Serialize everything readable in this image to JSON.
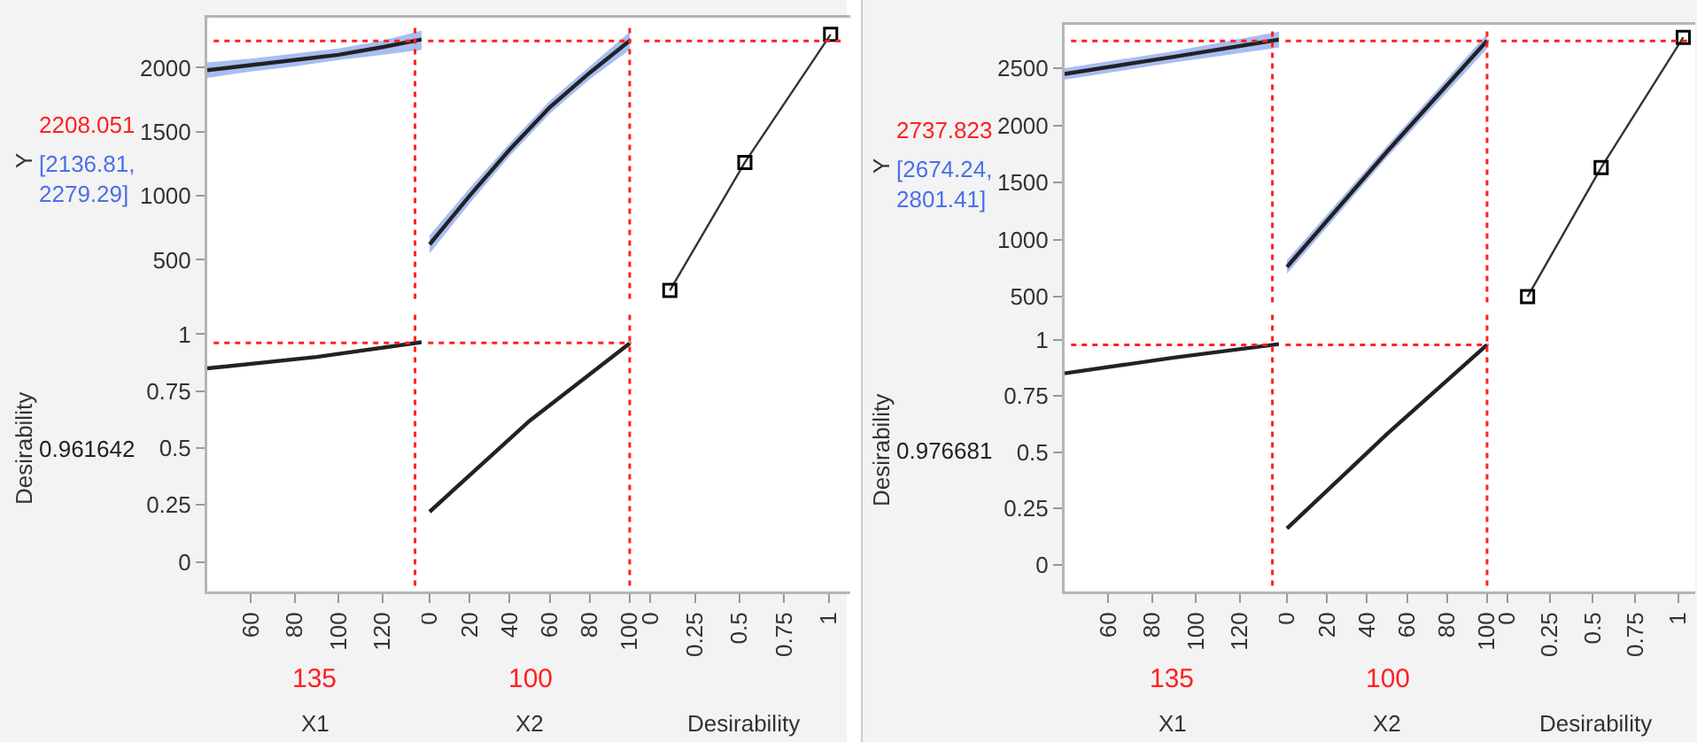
{
  "chart_data": [
    {
      "type": "line",
      "ylabel": "Y",
      "annotations": [
        "[2136.81, 2279.29]"
      ],
      "xlim": [
        40,
        138
      ],
      "ylim": [
        150,
        2390
      ],
      "yticks": [
        500,
        1000,
        1500,
        2000
      ],
      "tick_labels": "y",
      "series": [
        {
          "color": "#222222",
          "x": [
            40,
            60,
            80,
            100,
            120,
            138
          ],
          "values": [
            1980,
            2020,
            2060,
            2100,
            2160,
            2220
          ],
          "lower": [
            1920,
            1970,
            2010,
            2060,
            2100,
            2140
          ],
          "upper": [
            2040,
            2070,
            2110,
            2150,
            2210,
            2290
          ]
        }
      ],
      "ref_lines": [
        {
          "axis": "y",
          "value": 2208.051,
          "label": "2208.051",
          "color": "#ff2020",
          "line_style": "dotted"
        },
        {
          "axis": "x",
          "value": 135,
          "color": "#ff2020",
          "line_style": "dotted"
        }
      ]
    },
    {
      "type": "line",
      "xlim": [
        -4,
        104
      ],
      "ylim": [
        150,
        2390
      ],
      "tick_labels": false,
      "series": [
        {
          "color": "#222222",
          "x": [
            0,
            20,
            40,
            60,
            80,
            100
          ],
          "values": [
            620,
            1000,
            1360,
            1690,
            1960,
            2210
          ],
          "lower": [
            550,
            940,
            1310,
            1640,
            1910,
            2140
          ],
          "upper": [
            690,
            1060,
            1410,
            1740,
            2010,
            2280
          ]
        }
      ],
      "ref_lines": [
        {
          "axis": "y",
          "value": 2208.051,
          "color": "#ff2020",
          "line_style": "dotted"
        },
        {
          "axis": "x",
          "value": 100,
          "color": "#ff2020",
          "line_style": "dotted"
        }
      ]
    },
    {
      "type": "line",
      "marker": "square",
      "xlim": [
        -0.07,
        1.12
      ],
      "ylim": [
        150,
        2390
      ],
      "tick_labels": false,
      "series": [
        {
          "color": "#333333",
          "x": [
            0.11,
            0.53,
            1.01
          ],
          "values": [
            260,
            1260,
            2260
          ]
        }
      ],
      "ref_lines": [
        {
          "axis": "y",
          "value": 2208.051,
          "color": "#ff2020",
          "line_style": "dotted"
        }
      ]
    },
    {
      "type": "line",
      "ylabel": "Desirability",
      "xlabel": "X1",
      "annotations": [
        "0.961642"
      ],
      "xlim": [
        40,
        138
      ],
      "xticks": [
        60,
        80,
        100,
        120
      ],
      "ylim": [
        -0.13,
        1.13
      ],
      "yticks": [
        0,
        0.25,
        0.5,
        0.75,
        1
      ],
      "series": [
        {
          "color": "#222222",
          "x": [
            40,
            90,
            138
          ],
          "values": [
            0.85,
            0.9,
            0.965
          ]
        }
      ],
      "ref_lines": [
        {
          "axis": "y",
          "value": 0.961642,
          "color": "#ff2020",
          "line_style": "dotted"
        },
        {
          "axis": "x",
          "value": 135,
          "label": "135",
          "color": "#ff2020",
          "line_style": "dotted"
        }
      ]
    },
    {
      "type": "line",
      "xlabel": "X2",
      "xlim": [
        -4,
        104
      ],
      "xticks": [
        0,
        20,
        40,
        60,
        80,
        100
      ],
      "ylim": [
        -0.13,
        1.13
      ],
      "tick_labels": "x",
      "series": [
        {
          "color": "#222222",
          "x": [
            0,
            50,
            100
          ],
          "values": [
            0.22,
            0.62,
            0.96
          ]
        }
      ],
      "ref_lines": [
        {
          "axis": "y",
          "value": 0.961642,
          "color": "#ff2020",
          "line_style": "dotted"
        },
        {
          "axis": "x",
          "value": 100,
          "label": "100",
          "color": "#ff2020",
          "line_style": "dotted"
        }
      ]
    },
    {
      "type": "line",
      "xlabel": "Desirability",
      "xlim": [
        -0.07,
        1.12
      ],
      "xticks": [
        0,
        0.25,
        0.5,
        0.75,
        1
      ],
      "ylim": [
        -0.13,
        1.13
      ],
      "tick_labels": "x"
    },
    {
      "type": "line",
      "ylabel": "Y",
      "annotations": [
        "[2674.24, 2801.41]"
      ],
      "xlim": [
        40,
        138
      ],
      "ylim": [
        400,
        2880
      ],
      "yticks": [
        500,
        1000,
        1500,
        2000,
        2500
      ],
      "tick_labels": "y",
      "series": [
        {
          "color": "#222222",
          "x": [
            40,
            90,
            138
          ],
          "values": [
            2450,
            2600,
            2750
          ],
          "lower": [
            2400,
            2550,
            2680
          ],
          "upper": [
            2500,
            2650,
            2820
          ]
        }
      ],
      "ref_lines": [
        {
          "axis": "y",
          "value": 2737.823,
          "label": "2737.823",
          "color": "#ff2020",
          "line_style": "dotted"
        },
        {
          "axis": "x",
          "value": 135,
          "color": "#ff2020",
          "line_style": "dotted"
        }
      ]
    },
    {
      "type": "line",
      "xlim": [
        -4,
        104
      ],
      "ylim": [
        400,
        2880
      ],
      "tick_labels": false,
      "series": [
        {
          "color": "#222222",
          "x": [
            0,
            50,
            100
          ],
          "values": [
            760,
            1770,
            2740
          ],
          "lower": [
            700,
            1720,
            2670
          ],
          "upper": [
            820,
            1820,
            2800
          ]
        }
      ],
      "ref_lines": [
        {
          "axis": "y",
          "value": 2737.823,
          "color": "#ff2020",
          "line_style": "dotted"
        },
        {
          "axis": "x",
          "value": 100,
          "color": "#ff2020",
          "line_style": "dotted"
        }
      ]
    },
    {
      "type": "line",
      "marker": "square",
      "xlim": [
        -0.07,
        1.1
      ],
      "ylim": [
        400,
        2880
      ],
      "tick_labels": false,
      "series": [
        {
          "color": "#333333",
          "x": [
            0.12,
            0.55,
            1.03
          ],
          "values": [
            500,
            1630,
            2770
          ]
        }
      ],
      "ref_lines": [
        {
          "axis": "y",
          "value": 2737.823,
          "color": "#ff2020",
          "line_style": "dotted"
        }
      ]
    },
    {
      "type": "line",
      "ylabel": "Desirability",
      "xlabel": "X1",
      "annotations": [
        "0.976681"
      ],
      "xlim": [
        40,
        138
      ],
      "xticks": [
        60,
        80,
        100,
        120
      ],
      "ylim": [
        -0.12,
        1.14
      ],
      "yticks": [
        0,
        0.25,
        0.5,
        0.75,
        1
      ],
      "series": [
        {
          "color": "#222222",
          "x": [
            40,
            90,
            138
          ],
          "values": [
            0.85,
            0.92,
            0.98
          ]
        }
      ],
      "ref_lines": [
        {
          "axis": "y",
          "value": 0.976681,
          "color": "#ff2020",
          "line_style": "dotted"
        },
        {
          "axis": "x",
          "value": 135,
          "label": "135",
          "color": "#ff2020",
          "line_style": "dotted"
        }
      ]
    },
    {
      "type": "line",
      "xlabel": "X2",
      "xlim": [
        -4,
        104
      ],
      "xticks": [
        0,
        20,
        40,
        60,
        80,
        100
      ],
      "ylim": [
        -0.12,
        1.14
      ],
      "tick_labels": "x",
      "series": [
        {
          "color": "#222222",
          "x": [
            0,
            50,
            100
          ],
          "values": [
            0.16,
            0.58,
            0.977
          ]
        }
      ],
      "ref_lines": [
        {
          "axis": "y",
          "value": 0.976681,
          "color": "#ff2020",
          "line_style": "dotted"
        },
        {
          "axis": "x",
          "value": 100,
          "label": "100",
          "color": "#ff2020",
          "line_style": "dotted"
        }
      ]
    },
    {
      "type": "line",
      "xlabel": "Desirability",
      "xlim": [
        -0.07,
        1.1
      ],
      "xticks": [
        0,
        0.25,
        0.5,
        0.75,
        1
      ],
      "ylim": [
        -0.12,
        1.14
      ],
      "tick_labels": "x"
    }
  ]
}
